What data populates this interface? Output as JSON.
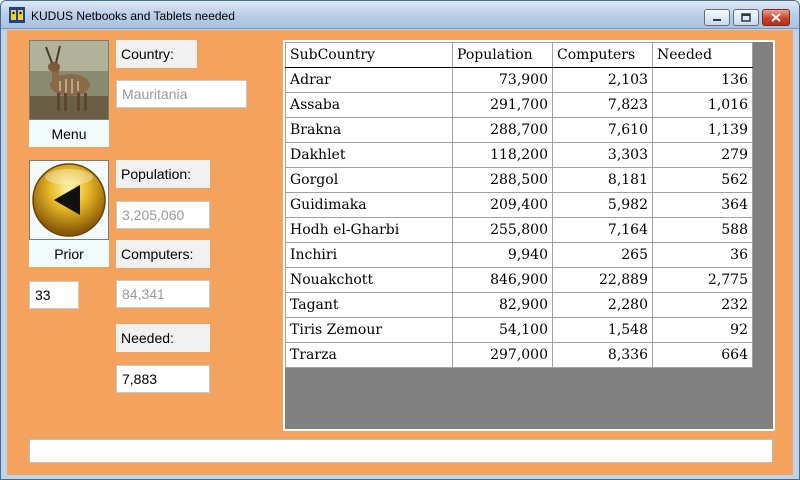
{
  "window": {
    "title": "KUDUS Netbooks and Tablets needed",
    "icon": "kudus-app-icon",
    "controls": [
      "minimize-icon",
      "maximize-icon",
      "close-icon"
    ]
  },
  "menu_tile": {
    "label": "Menu",
    "image": "kudu-antelope-photo"
  },
  "prior_tile": {
    "label": "Prior",
    "icon": "left-arrow-icon"
  },
  "index_value": "33",
  "fields": {
    "country_label": "Country:",
    "country_value": "Mauritania",
    "population_label": "Population:",
    "population_value": "3,205,060",
    "computers_label": "Computers:",
    "computers_value": "84,341",
    "needed_label": "Needed:",
    "needed_value": "7,883"
  },
  "table": {
    "columns": [
      "SubCountry",
      "Population",
      "Computers",
      "Needed"
    ],
    "rows": [
      [
        "Adrar",
        "73,900",
        "2,103",
        "136"
      ],
      [
        "Assaba",
        "291,700",
        "7,823",
        "1,016"
      ],
      [
        "Brakna",
        "288,700",
        "7,610",
        "1,139"
      ],
      [
        "Dakhlet",
        "118,200",
        "3,303",
        "279"
      ],
      [
        "Gorgol",
        "288,500",
        "8,181",
        "562"
      ],
      [
        "Guidimaka",
        "209,400",
        "5,982",
        "364"
      ],
      [
        "Hodh el-Gharbi",
        "255,800",
        "7,164",
        "588"
      ],
      [
        "Inchiri",
        "9,940",
        "265",
        "36"
      ],
      [
        "Nouakchott",
        "846,900",
        "22,889",
        "2,775"
      ],
      [
        "Tagant",
        "82,900",
        "2,280",
        "232"
      ],
      [
        "Tiris Zemour",
        "54,100",
        "1,548",
        "92"
      ],
      [
        "Trarza",
        "297,000",
        "8,336",
        "664"
      ]
    ]
  },
  "status_text": "",
  "colors": {
    "background": "#f3a35e",
    "grid_backdrop": "#808080"
  }
}
